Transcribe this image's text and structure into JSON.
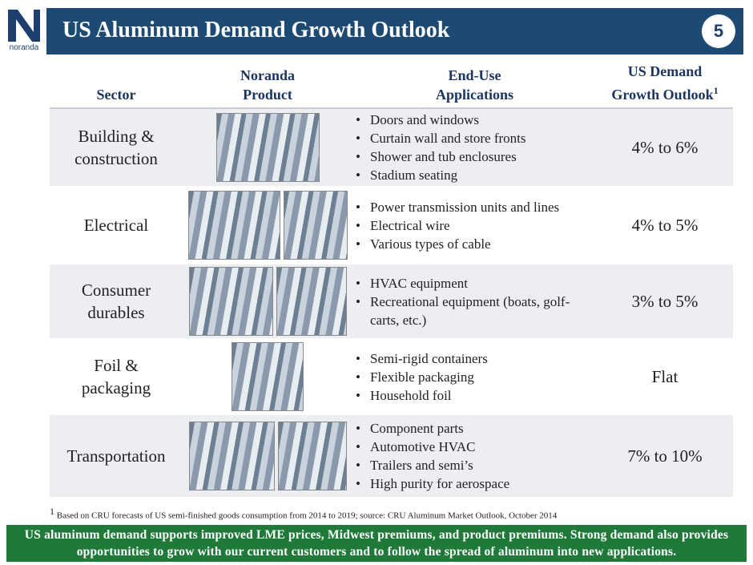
{
  "header": {
    "logo_text": "noranda",
    "title": "US Aluminum Demand Growth Outlook",
    "page_number": "5"
  },
  "table": {
    "headers": [
      "Sector",
      "Noranda Product",
      "End-Use Applications",
      "US Demand Growth Outlook"
    ],
    "header_note": "1",
    "rows": [
      {
        "sector": "Building & construction",
        "applications": [
          "Doors and windows",
          "Curtain wall and store fronts",
          "Shower and tub enclosures",
          "Stadium seating"
        ],
        "outlook": "4% to 6%"
      },
      {
        "sector": "Electrical",
        "applications": [
          "Power transmission units and lines",
          "Electrical wire",
          "Various types of cable"
        ],
        "outlook": "4% to 5%"
      },
      {
        "sector": "Consumer durables",
        "applications": [
          "HVAC equipment",
          "Recreational equipment (boats, golf-carts, etc.)"
        ],
        "outlook": "3% to 5%"
      },
      {
        "sector": "Foil & packaging",
        "applications": [
          "Semi-rigid containers",
          "Flexible packaging",
          "Household foil"
        ],
        "outlook": "Flat"
      },
      {
        "sector": "Transportation",
        "applications": [
          "Component parts",
          "Automotive HVAC",
          "Trailers and semi’s",
          "High purity for aerospace"
        ],
        "outlook": "7% to 10%"
      }
    ]
  },
  "footnote": {
    "marker": "1",
    "text": "Based on CRU forecasts of US semi-finished goods consumption from 2014 to 2019; source: CRU Aluminum Market Outlook, October 2014"
  },
  "banner": "US aluminum demand supports improved LME prices, Midwest premiums, and product premiums. Strong demand also provides opportunities to grow with our current customers and to follow the spread of aluminum into new applications."
}
